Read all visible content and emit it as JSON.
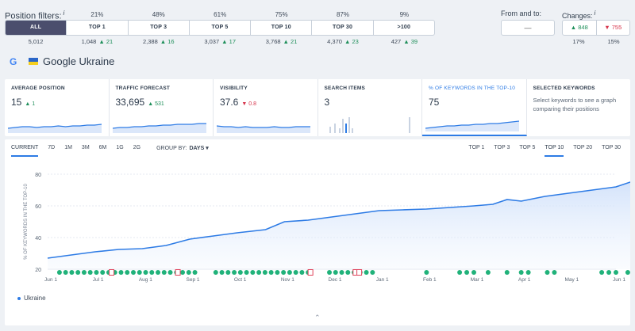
{
  "position_filters": {
    "label": "Position filters:",
    "info": "i",
    "percents": [
      "21%",
      "48%",
      "61%",
      "75%",
      "87%",
      "9%"
    ],
    "buttons": [
      {
        "label": "ALL",
        "active": true
      },
      {
        "label": "TOP 1"
      },
      {
        "label": "TOP 3"
      },
      {
        "label": "TOP 5"
      },
      {
        "label": "TOP 10"
      },
      {
        "label": "TOP 30"
      },
      {
        "label": ">100"
      }
    ],
    "counts": [
      {
        "value": "5,012",
        "delta": ""
      },
      {
        "value": "1,048",
        "delta": "▲ 21"
      },
      {
        "value": "2,388",
        "delta": "▲ 16"
      },
      {
        "value": "3,037",
        "delta": "▲ 17"
      },
      {
        "value": "3,768",
        "delta": "▲ 21"
      },
      {
        "value": "4,370",
        "delta": "▲ 23"
      },
      {
        "value": "427",
        "delta": "▲ 39"
      }
    ]
  },
  "from_to": {
    "label": "From and to:",
    "value": "—"
  },
  "changes": {
    "label": "Changes:",
    "info": "i",
    "up": "▲ 848",
    "down": "▼ 755",
    "up_pct": "17%",
    "down_pct": "15%"
  },
  "search_engine": {
    "icon": "G",
    "title": "Google Ukraine"
  },
  "cards": [
    {
      "title": "AVERAGE POSITION",
      "value": "15",
      "delta": "▲ 1",
      "delta_dir": "up"
    },
    {
      "title": "TRAFFIC FORECAST",
      "value": "33,695",
      "delta": "▲ 531",
      "delta_dir": "up"
    },
    {
      "title": "VISIBILITY",
      "value": "37.6",
      "delta": "▼ 0.8",
      "delta_dir": "down"
    },
    {
      "title": "SEARCH ITEMS",
      "value": "3",
      "delta": ""
    },
    {
      "title": "% OF KEYWORDS IN THE TOP-10",
      "value": "75",
      "delta": "",
      "selected": true
    },
    {
      "title": "SELECTED KEYWORDS",
      "desc": "Select keywords to see a graph comparing their positions"
    }
  ],
  "period_tabs": [
    "CURRENT",
    "7D",
    "1M",
    "3M",
    "6M",
    "1G",
    "2G"
  ],
  "group_by": {
    "label": "GROUP BY:",
    "value": "DAYS ▾"
  },
  "top_tabs": [
    "TOP 1",
    "TOP 3",
    "TOP 5",
    "TOP 10",
    "TOP 20",
    "TOP 30"
  ],
  "colors": {
    "accent": "#2d7be5",
    "green_event": "#21b27a",
    "red_event": "#e0435b"
  },
  "chart_data": {
    "type": "area",
    "title": "",
    "xlabel": "",
    "ylabel": "% OF KEYWORDS IN THE TOP-10",
    "ylim": [
      20,
      80
    ],
    "y_ticks": [
      "20",
      "40",
      "60",
      "80"
    ],
    "x_ticks": [
      "Jun 1",
      "Jul 1",
      "Aug 1",
      "Sep 1",
      "Oct 1",
      "Nov 1",
      "Dec 1",
      "Jan 1",
      "Feb 1",
      "Mar 1",
      "Apr 1",
      "May 1",
      "Jun 1"
    ],
    "grid": true,
    "legend": "bottom-left",
    "series": [
      {
        "name": "Ukraine",
        "x": [
          0,
          0.5,
          1,
          1.5,
          2,
          2.5,
          3,
          3.5,
          4,
          4.3,
          4.6,
          5,
          5.5,
          6,
          6.5,
          7,
          7.5,
          8,
          8.5,
          9,
          9.4,
          9.7,
          10,
          10.5,
          11,
          11.5,
          12,
          12.3,
          12.6
        ],
        "values": [
          27,
          29,
          31,
          32.5,
          33,
          35,
          39,
          41,
          43,
          44,
          45,
          50,
          51,
          53,
          55,
          57,
          57.5,
          58,
          59,
          60,
          61,
          64,
          63,
          66,
          68,
          70,
          72,
          75,
          75
        ]
      }
    ]
  },
  "legend_label": "Ukraine"
}
